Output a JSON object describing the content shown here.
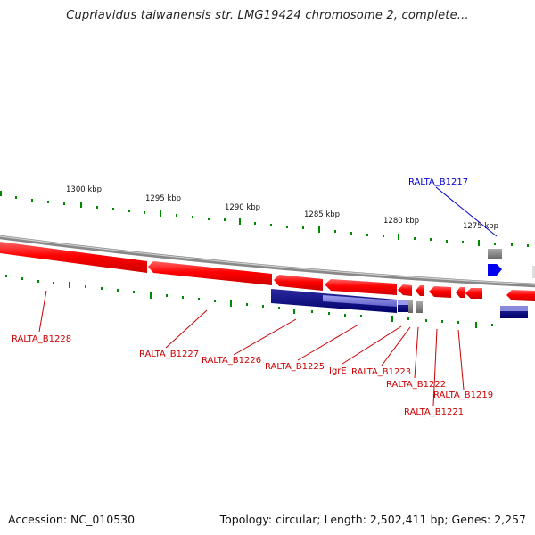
{
  "title": "Cupriavidus taiwanensis str. LMG19424 chromosome 2, complete...",
  "footer": {
    "accession": "Accession: NC_010530",
    "summary": "Topology: circular; Length: 2,502,411 bp; Genes: 2,257"
  },
  "colors": {
    "forward_gene": "#ff0000",
    "reverse_gene_label": "#cc0000",
    "highlight_gene": "#0000ee",
    "cds_dark": "#00007a",
    "cds_light": "#7777dd",
    "pseudo_gene": "#888888",
    "tick": "#008800",
    "backbone": "#888888"
  },
  "scale_ticks": [
    {
      "label": "1300 kbp"
    },
    {
      "label": "1295 kbp"
    },
    {
      "label": "1290 kbp"
    },
    {
      "label": "1285 kbp"
    },
    {
      "label": "1280 kbp"
    },
    {
      "label": "1275 kbp"
    }
  ],
  "gene_labels": [
    {
      "id": "RALTA_B1228",
      "text": "RALTA_B1228"
    },
    {
      "id": "RALTA_B1227",
      "text": "RALTA_B1227"
    },
    {
      "id": "RALTA_B1226",
      "text": "RALTA_B1226"
    },
    {
      "id": "RALTA_B1225",
      "text": "RALTA_B1225"
    },
    {
      "id": "IgrE",
      "text": "IgrE"
    },
    {
      "id": "RALTA_B1223",
      "text": "RALTA_B1223"
    },
    {
      "id": "RALTA_B1222",
      "text": "RALTA_B1222"
    },
    {
      "id": "RALTA_B1221",
      "text": "RALTA_B1221"
    },
    {
      "id": "RALTA_B1219",
      "text": "RALTA_B1219"
    },
    {
      "id": "RALTA_B1217",
      "text": "RALTA_B1217"
    }
  ]
}
